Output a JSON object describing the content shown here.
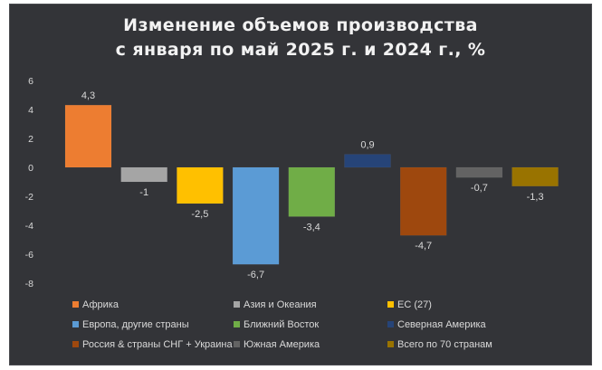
{
  "chart_data": {
    "type": "bar",
    "title_lines": [
      "Изменение объемов производства",
      "с января по май 2025 г. и 2024 г., %"
    ],
    "ylim": [
      -8,
      6
    ],
    "yticks": [
      6,
      4,
      2,
      0,
      -2,
      -4,
      -6,
      -8
    ],
    "grid": false,
    "legend_position": "bottom",
    "categories": [
      "Африка",
      "Азия и Океания",
      "ЕС (27)",
      "Европа, другие страны",
      "Ближний Восток",
      "Северная Америка",
      "Россия & страны СНГ + Украина",
      "Южная Америка",
      "Всего по 70 странам"
    ],
    "values": [
      4.3,
      -1,
      -2.5,
      -6.7,
      -3.4,
      0.9,
      -4.7,
      -0.7,
      -1.3
    ],
    "value_labels": [
      "4,3",
      "-1",
      "-2,5",
      "-6,7",
      "-3,4",
      "0,9",
      "-4,7",
      "-0,7",
      "-1,3"
    ],
    "colors": [
      "#ED7D31",
      "#A5A5A5",
      "#FFC000",
      "#5B9BD5",
      "#70AD47",
      "#264478",
      "#9E480E",
      "#636363",
      "#997300"
    ]
  }
}
